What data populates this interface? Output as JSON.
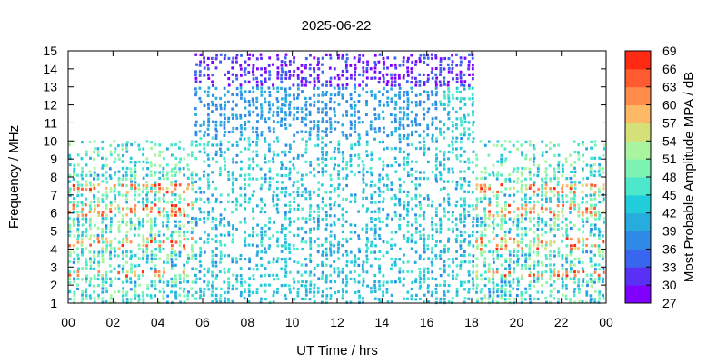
{
  "chart_data": {
    "type": "heatmap",
    "title": "2025-06-22",
    "xlabel": "UT Time / hrs",
    "ylabel": "Frequency / MHz",
    "colorbar_label": "Most Probable Amplitude MPA / dB",
    "xlim": [
      0,
      24
    ],
    "ylim": [
      1,
      15
    ],
    "x_tick_labels": [
      "00",
      "02",
      "04",
      "06",
      "08",
      "10",
      "12",
      "14",
      "16",
      "18",
      "20",
      "22",
      "00"
    ],
    "y_tick_labels": [
      "1",
      "2",
      "3",
      "4",
      "5",
      "6",
      "7",
      "8",
      "9",
      "10",
      "11",
      "12",
      "13",
      "14",
      "15"
    ],
    "colorbar_range": [
      27,
      69
    ],
    "colorbar_ticks": [
      "27",
      "30",
      "33",
      "36",
      "39",
      "42",
      "45",
      "48",
      "51",
      "54",
      "57",
      "60",
      "63",
      "66",
      "69"
    ],
    "colorbar_colors": [
      "#7f00ff",
      "#5a30f5",
      "#3966ee",
      "#2f8ae6",
      "#27acde",
      "#22cddb",
      "#4de8cc",
      "#7cf3b3",
      "#a9f49f",
      "#d6e079",
      "#fdb965",
      "#ff8c4a",
      "#ff5a30",
      "#ff2a14"
    ],
    "grid": false,
    "legend": "colorbar-right",
    "coverage": {
      "night_low_band_mhz": [
        1,
        10
      ],
      "day_band_mhz": [
        1,
        15
      ],
      "day_hours": [
        5.6,
        18
      ],
      "strong_bands_mhz": [
        [
          2.3,
          2.8
        ],
        [
          3.8,
          4.6
        ],
        [
          5.8,
          6.5
        ],
        [
          7,
          7.6
        ]
      ]
    }
  }
}
